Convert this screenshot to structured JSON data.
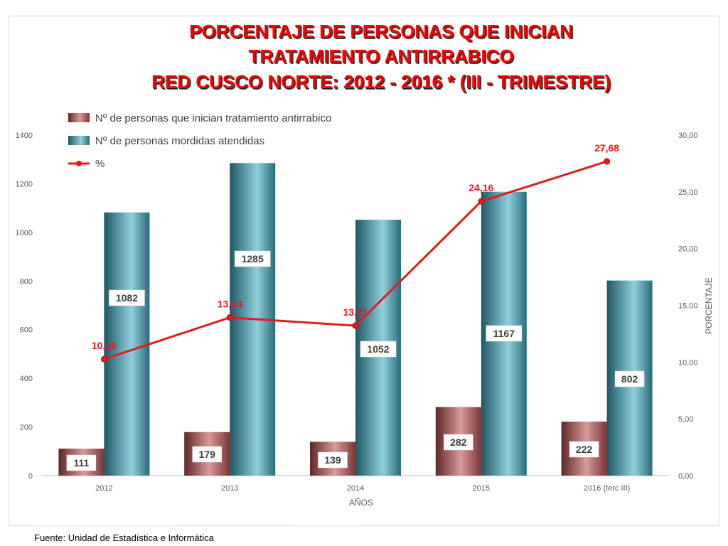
{
  "title": {
    "line1": "PORCENTAJE DE PERSONAS QUE INICIAN",
    "line2": "TRATAMIENTO ANTIRRABICO",
    "line3": "RED CUSCO NORTE: 2012 - 2016 * (III - TRIMESTRE)"
  },
  "footer": "Fuente: Unidad de Estadística e Informática",
  "colors": {
    "series1": "#9e4f4f",
    "series2": "#3d8797",
    "line": "#e31b1b",
    "label_line": "#e31b1b",
    "axis_text": "#595959",
    "grid": "#d9d9d9"
  },
  "chart_data": {
    "type": "bar",
    "categories": [
      "2012",
      "2013",
      "2014",
      "2015",
      "2016 (terc III)"
    ],
    "series": [
      {
        "name": "Nº de personas que inician tratamiento antirrabico",
        "type": "bar",
        "axis": "left",
        "values": [
          111,
          179,
          139,
          282,
          222
        ]
      },
      {
        "name": "Nº de personas mordidas atendidas",
        "type": "bar",
        "axis": "left",
        "values": [
          1082,
          1285,
          1052,
          1167,
          802
        ]
      },
      {
        "name": "%",
        "type": "line",
        "axis": "right",
        "values": [
          10.26,
          13.93,
          13.21,
          24.16,
          27.68
        ],
        "labels": [
          "10,26",
          "13,93",
          "13,21",
          "24,16",
          "27,68"
        ]
      }
    ],
    "xlabel": "AÑOS",
    "ylabel": "",
    "y2label": "PORCENTAJE",
    "ylim": [
      0,
      1400
    ],
    "y2lim": [
      0,
      30
    ],
    "yticks": [
      "0",
      "200",
      "400",
      "600",
      "800",
      "1000",
      "1200",
      "1400"
    ],
    "y2ticks": [
      "0,00",
      "5,00",
      "10,00",
      "15,00",
      "20,00",
      "25,00",
      "30,00"
    ],
    "grid": false,
    "legend": "top-left"
  }
}
